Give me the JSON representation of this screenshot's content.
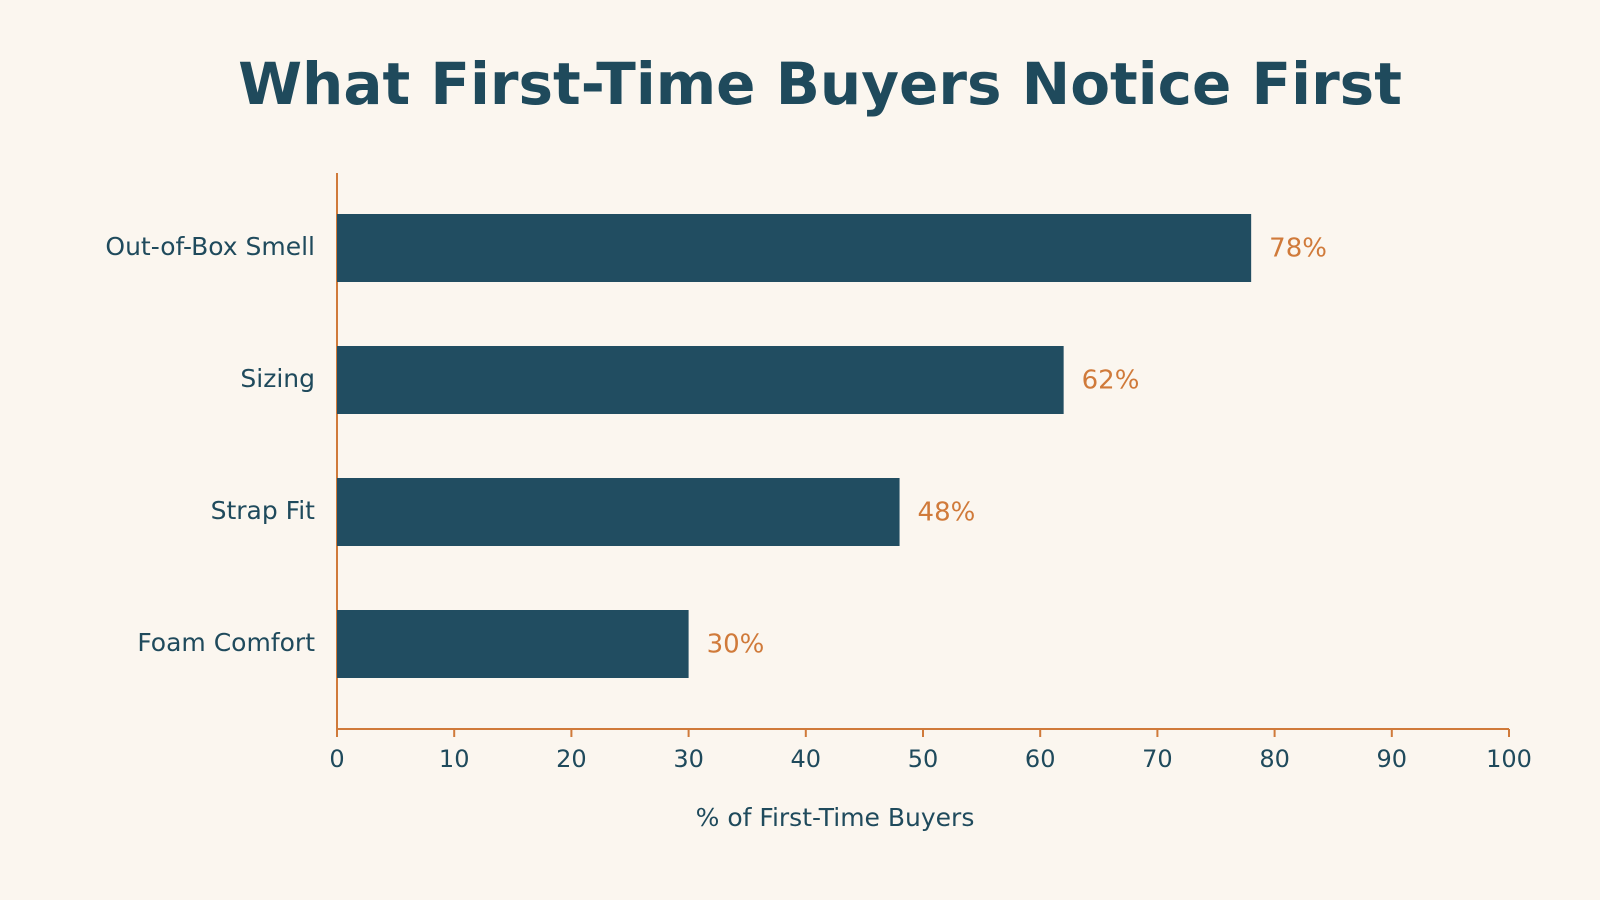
{
  "chart_data": {
    "type": "bar",
    "orientation": "horizontal",
    "title": "What First-Time Buyers Notice First",
    "x_label": "% of First-Time Buyers",
    "categories": [
      "Out-of-Box Smell",
      "Sizing",
      "Strap Fit",
      "Foam Comfort"
    ],
    "values": [
      78,
      62,
      48,
      30
    ],
    "value_labels": [
      "78%",
      "62%",
      "48%",
      "30%"
    ],
    "color": "#214d61",
    "label_color": "#d07a3a",
    "axis_color": "#d07a3a",
    "xlim": [
      0,
      100
    ],
    "xticks": [
      0,
      10,
      20,
      30,
      40,
      50,
      60,
      70,
      80,
      90,
      100
    ],
    "grid": false
  }
}
